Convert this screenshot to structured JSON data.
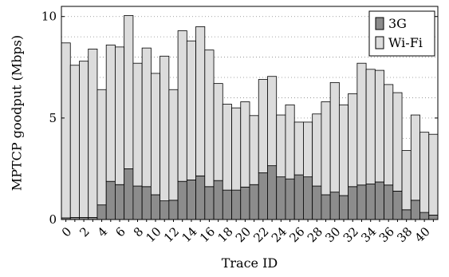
{
  "chart_data": {
    "type": "bar",
    "stacked": true,
    "xlabel": "Trace ID",
    "ylabel": "MPTCP goodput (Mbps)",
    "ylim": [
      0,
      10.5
    ],
    "yticks": [
      "0",
      "5",
      "10"
    ],
    "ytick_values": [
      0,
      5,
      10
    ],
    "xtick_labels": [
      "0",
      "2",
      "4",
      "6",
      "8",
      "10",
      "12",
      "14",
      "16",
      "18",
      "20",
      "22",
      "24",
      "26",
      "28",
      "30",
      "32",
      "34",
      "36",
      "38",
      "40"
    ],
    "grid": "horizontal dotted",
    "legend_position": "top-right",
    "categories": [
      0,
      1,
      2,
      3,
      4,
      5,
      6,
      7,
      8,
      9,
      10,
      11,
      12,
      13,
      14,
      15,
      16,
      17,
      18,
      19,
      20,
      21,
      22,
      23,
      24,
      25,
      26,
      27,
      28,
      29,
      30,
      31,
      32,
      33,
      34,
      35,
      36,
      37,
      38,
      39,
      40,
      41
    ],
    "series": [
      {
        "name": "3G",
        "color": "#8c8c8c",
        "values": [
          0.08,
          0.1,
          0.1,
          0.1,
          0.72,
          1.88,
          1.72,
          2.5,
          1.65,
          1.62,
          1.22,
          0.92,
          0.95,
          1.88,
          1.95,
          2.15,
          1.62,
          1.92,
          1.45,
          1.45,
          1.6,
          1.72,
          2.3,
          2.65,
          2.1,
          2.0,
          2.2,
          2.1,
          1.65,
          1.22,
          1.35,
          1.18,
          1.62,
          1.7,
          1.75,
          1.85,
          1.7,
          1.4,
          0.48,
          0.95,
          0.35,
          0.22
        ]
      },
      {
        "name": "Wi-Fi",
        "color": "#dcdcdc",
        "values": [
          8.62,
          7.5,
          7.7,
          8.3,
          5.68,
          6.72,
          6.78,
          7.55,
          6.05,
          6.83,
          5.98,
          7.13,
          5.45,
          7.42,
          6.85,
          7.35,
          6.73,
          4.78,
          4.23,
          4.05,
          4.2,
          3.4,
          4.6,
          4.4,
          3.05,
          3.65,
          2.6,
          2.7,
          3.55,
          4.58,
          5.4,
          4.47,
          4.58,
          6.0,
          5.65,
          5.5,
          4.95,
          4.85,
          2.92,
          4.2,
          3.95,
          3.98
        ]
      }
    ]
  }
}
